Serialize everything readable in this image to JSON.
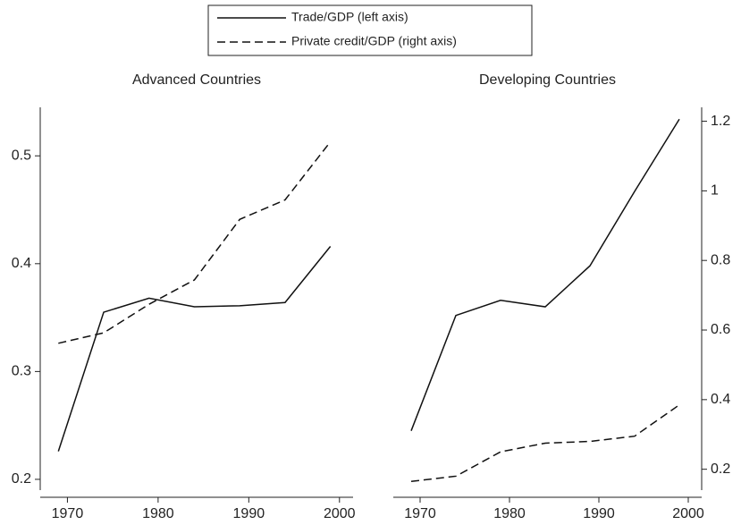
{
  "chart_data": {
    "type": "line",
    "legend": [
      {
        "name": "Trade/GDP (left axis)",
        "color": "#111111",
        "dash": "none"
      },
      {
        "name": "Private credit/GDP (right axis)",
        "color": "#111111",
        "dash": "9 5"
      }
    ],
    "xlim": [
      1967,
      2001.5
    ],
    "xticks": [
      1970,
      1980,
      1990,
      2000
    ],
    "ylim": [
      0.19,
      0.545
    ],
    "yticks": [
      0.2,
      0.3,
      0.4,
      0.5
    ],
    "y2lim": [
      0.14,
      1.24
    ],
    "y2ticks": [
      0.2,
      0.4,
      0.6,
      0.8,
      1,
      1.2
    ],
    "panels": [
      {
        "title": "Advanced Countries",
        "x": [
          1969,
          1974,
          1979,
          1984,
          1989,
          1994,
          1999
        ],
        "series": [
          {
            "values": [
              0.226,
              0.355,
              0.368,
              0.36,
              0.361,
              0.364,
              0.416
            ]
          },
          {
            "values": [
              0.562,
              0.592,
              0.674,
              0.744,
              0.918,
              0.974,
              1.141
            ],
            "axis": "y2"
          }
        ]
      },
      {
        "title": "Developing Countries",
        "x": [
          1969,
          1974,
          1979,
          1984,
          1989,
          1994,
          1999
        ],
        "series": [
          {
            "values": [
              0.245,
              0.352,
              0.366,
              0.36,
              0.398,
              0.467,
              0.534
            ]
          },
          {
            "values": [
              0.165,
              0.18,
              0.25,
              0.275,
              0.28,
              0.295,
              0.385
            ],
            "axis": "y2"
          }
        ]
      }
    ]
  }
}
